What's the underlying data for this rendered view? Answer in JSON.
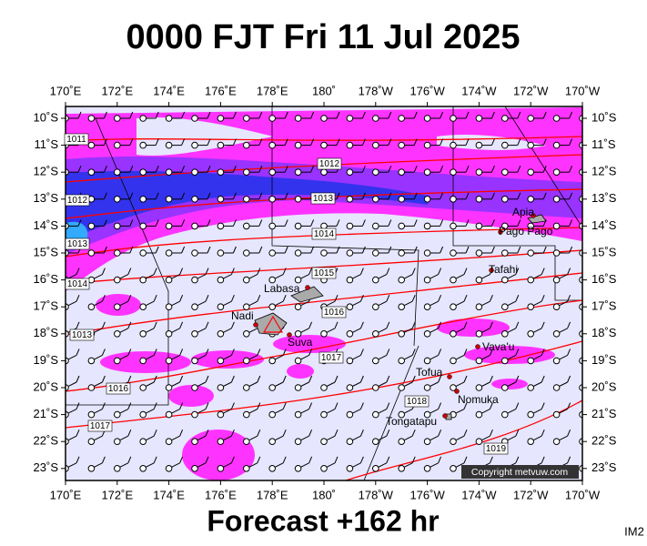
{
  "title": "0000 FJT Fri 11 Jul 2025",
  "longitude_labels": [
    "170˚E",
    "172˚E",
    "174˚E",
    "176˚E",
    "178˚E",
    "180˚",
    "178˚W",
    "176˚W",
    "174˚W",
    "172˚W",
    "170˚W"
  ],
  "latitude_labels": [
    "10˚S",
    "11˚S",
    "12˚S",
    "13˚S",
    "14˚S",
    "15˚S",
    "16˚S",
    "17˚S",
    "18˚S",
    "19˚S",
    "20˚S",
    "21˚S",
    "22˚S",
    "23˚S"
  ],
  "isobar_labels": [
    "1011",
    "1012",
    "1013",
    "1014",
    "1015",
    "1016",
    "1017",
    "1018",
    "1019",
    "1012",
    "1013",
    "1014",
    "1013",
    "1016",
    "1017"
  ],
  "places": [
    "Apia",
    "Pago Pago",
    "Tafahi",
    "Labasa",
    "Nadi",
    "Suva",
    "Vava'u",
    "Tofua",
    "Nomuka",
    "Tongatapu"
  ],
  "copyright": "Copyright metvuw.com",
  "footer": "Forecast +162 hr",
  "image_id": "IM2"
}
